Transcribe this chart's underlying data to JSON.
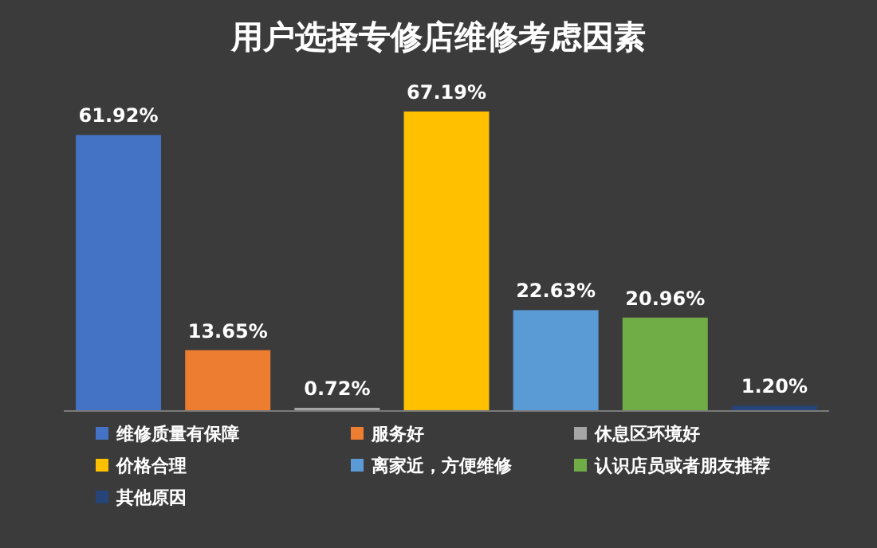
{
  "chart_data": {
    "type": "bar",
    "title": "用户选择专修店维修考虑因素",
    "stacked": true,
    "categories": [
      null,
      null,
      null,
      null,
      null,
      null,
      null
    ],
    "series": [
      {
        "name": "维修质量有保障",
        "color": "#4472c4",
        "values": [
          61.92,
          null,
          null,
          null,
          null,
          null,
          null
        ],
        "value_labels": [
          "61.92%",
          null,
          null,
          null,
          null,
          null,
          null
        ]
      },
      {
        "name": "服务好",
        "color": "#ed7d31",
        "values": [
          null,
          13.65,
          null,
          null,
          null,
          null,
          null
        ],
        "value_labels": [
          null,
          "13.65%",
          null,
          null,
          null,
          null,
          null
        ]
      },
      {
        "name": "休息区环境好",
        "color": "#a5a5a5",
        "values": [
          null,
          null,
          0.72,
          null,
          null,
          null,
          null
        ],
        "value_labels": [
          null,
          null,
          "0.72%",
          null,
          null,
          null,
          null
        ]
      },
      {
        "name": "价格合理",
        "color": "#ffc000",
        "values": [
          null,
          null,
          null,
          67.19,
          null,
          null,
          null
        ],
        "value_labels": [
          null,
          null,
          null,
          "67.19%",
          null,
          null,
          null
        ]
      },
      {
        "name": "离家近，方便维修",
        "color": "#5b9bd5",
        "values": [
          null,
          null,
          null,
          null,
          22.63,
          null,
          null
        ],
        "value_labels": [
          null,
          null,
          null,
          null,
          "22.63%",
          null,
          null
        ]
      },
      {
        "name": "认识店员或者朋友推荐",
        "color": "#70ad47",
        "values": [
          null,
          null,
          null,
          null,
          null,
          20.96,
          null
        ],
        "value_labels": [
          null,
          null,
          null,
          null,
          null,
          "20.96%",
          null
        ]
      },
      {
        "name": "其他原因",
        "color": "#264478",
        "values": [
          null,
          null,
          null,
          null,
          null,
          null,
          1.2
        ],
        "value_labels": [
          null,
          null,
          null,
          null,
          null,
          null,
          "1.20%"
        ]
      }
    ],
    "legend": "bottom",
    "grid": false
  }
}
